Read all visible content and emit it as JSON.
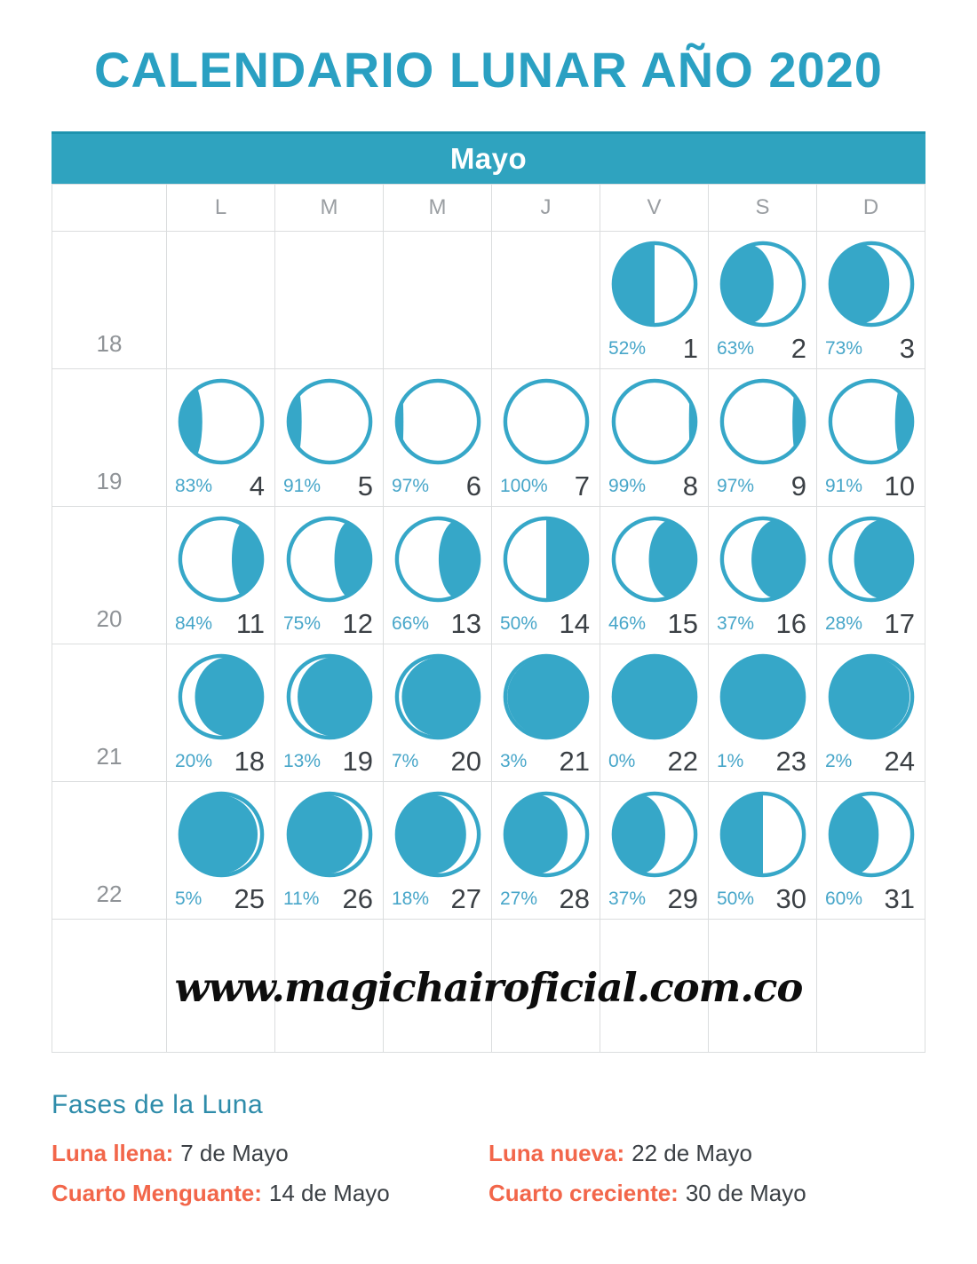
{
  "title": "CALENDARIO LUNAR AÑO 2020",
  "month": "Mayo",
  "day_headers": [
    "L",
    "M",
    "M",
    "J",
    "V",
    "S",
    "D"
  ],
  "colors": {
    "title_teal": "#2AA0C2",
    "banner_teal": "#2FA3BF",
    "banner_edge": "#1E93AE",
    "moon_teal": "#36A7C8",
    "percent_teal": "#47A6C9",
    "accent_orange": "#F2664A",
    "heading_teal": "#2E8CAA",
    "grid_line": "#DBDDDE",
    "day_number_gray": "#3B4045",
    "week_number_gray": "#8F9397"
  },
  "weeks": [
    {
      "week": "18",
      "cells": [
        null,
        null,
        null,
        null,
        {
          "day": "1",
          "pct": "52%",
          "style": "half",
          "side": "left",
          "w": 0.5
        },
        {
          "day": "2",
          "pct": "63%",
          "style": "ellipse",
          "side": "left",
          "w": 0.63
        },
        {
          "day": "3",
          "pct": "73%",
          "style": "ellipse",
          "side": "left",
          "w": 0.72
        }
      ]
    },
    {
      "week": "19",
      "cells": [
        {
          "day": "4",
          "pct": "83%",
          "style": "ellipse",
          "side": "left",
          "w": 0.27
        },
        {
          "day": "5",
          "pct": "91%",
          "style": "ellipse",
          "side": "left",
          "w": 0.16
        },
        {
          "day": "6",
          "pct": "97%",
          "style": "ellipse",
          "side": "left",
          "w": 0.08
        },
        {
          "day": "7",
          "pct": "100%",
          "style": "none",
          "side": "none",
          "w": 0
        },
        {
          "day": "8",
          "pct": "99%",
          "style": "ellipse",
          "side": "right",
          "w": 0.08
        },
        {
          "day": "9",
          "pct": "97%",
          "style": "ellipse",
          "side": "right",
          "w": 0.14
        },
        {
          "day": "10",
          "pct": "91%",
          "style": "ellipse",
          "side": "right",
          "w": 0.21
        }
      ]
    },
    {
      "week": "20",
      "cells": [
        {
          "day": "11",
          "pct": "84%",
          "style": "ellipse",
          "side": "right",
          "w": 0.37
        },
        {
          "day": "12",
          "pct": "75%",
          "style": "ellipse",
          "side": "right",
          "w": 0.44
        },
        {
          "day": "13",
          "pct": "66%",
          "style": "ellipse",
          "side": "right",
          "w": 0.49
        },
        {
          "day": "14",
          "pct": "50%",
          "style": "half",
          "side": "right",
          "w": 0.5
        },
        {
          "day": "15",
          "pct": "46%",
          "style": "ellipse",
          "side": "right",
          "w": 0.57
        },
        {
          "day": "16",
          "pct": "37%",
          "style": "ellipse",
          "side": "right",
          "w": 0.64
        },
        {
          "day": "17",
          "pct": "28%",
          "style": "ellipse",
          "side": "right",
          "w": 0.71
        }
      ]
    },
    {
      "week": "21",
      "cells": [
        {
          "day": "18",
          "pct": "20%",
          "style": "ellipse",
          "side": "right",
          "w": 0.82
        },
        {
          "day": "19",
          "pct": "13%",
          "style": "ellipse",
          "side": "right",
          "w": 0.89
        },
        {
          "day": "20",
          "pct": "7%",
          "style": "ellipse",
          "side": "right",
          "w": 0.94
        },
        {
          "day": "21",
          "pct": "3%",
          "style": "ellipse",
          "side": "right",
          "w": 0.975
        },
        {
          "day": "22",
          "pct": "0%",
          "style": "full",
          "side": "full",
          "w": 1
        },
        {
          "day": "23",
          "pct": "1%",
          "style": "ellipse",
          "side": "left",
          "w": 0.985
        },
        {
          "day": "24",
          "pct": "2%",
          "style": "ellipse",
          "side": "left",
          "w": 0.968
        }
      ]
    },
    {
      "week": "22",
      "cells": [
        {
          "day": "25",
          "pct": "5%",
          "style": "ellipse",
          "side": "left",
          "w": 0.945
        },
        {
          "day": "26",
          "pct": "11%",
          "style": "ellipse",
          "side": "left",
          "w": 0.9
        },
        {
          "day": "27",
          "pct": "18%",
          "style": "ellipse",
          "side": "left",
          "w": 0.845
        },
        {
          "day": "28",
          "pct": "27%",
          "style": "ellipse",
          "side": "left",
          "w": 0.76
        },
        {
          "day": "29",
          "pct": "37%",
          "style": "ellipse",
          "side": "left",
          "w": 0.63
        },
        {
          "day": "30",
          "pct": "50%",
          "style": "half",
          "side": "left",
          "w": 0.5
        },
        {
          "day": "31",
          "pct": "60%",
          "style": "ellipse",
          "side": "left",
          "w": 0.59
        }
      ]
    }
  ],
  "watermark": "www.magichairoficial.com.co",
  "footer": {
    "heading": "Fases de la Luna",
    "items": [
      {
        "label": "Luna llena:",
        "value": "7 de Mayo"
      },
      {
        "label": "Luna nueva:",
        "value": "22 de Mayo"
      },
      {
        "label": "Cuarto Menguante:",
        "value": "14 de Mayo"
      },
      {
        "label": "Cuarto creciente:",
        "value": "30 de Mayo"
      }
    ]
  }
}
